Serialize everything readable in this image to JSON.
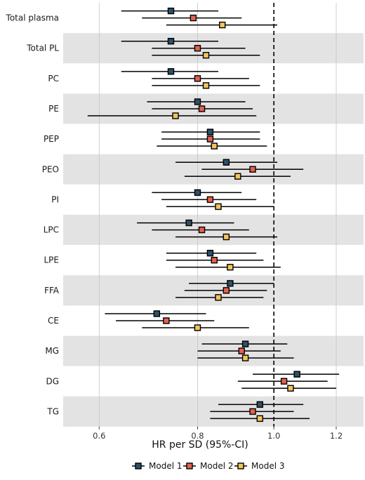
{
  "chart_data": {
    "type": "scatter",
    "subtype": "forest-plot",
    "title": "",
    "xlabel": "HR per SD (95%-CI)",
    "ylabel": "",
    "x_scale": "log",
    "xlim": [
      0.54,
      1.3
    ],
    "x_ticks": [
      0.6,
      0.8,
      1.0,
      1.2
    ],
    "x_tick_labels": [
      "0.6",
      "0.8",
      "1.0",
      "1.2"
    ],
    "reference_line": 1.0,
    "grid": true,
    "legend_position": "bottom",
    "categories": [
      "Total plasma",
      "Total PL",
      "PC",
      "PE",
      "PEP",
      "PEO",
      "PI",
      "LPC",
      "LPE",
      "FFA",
      "CE",
      "MG",
      "DG",
      "TG"
    ],
    "series": [
      {
        "name": "Model 1",
        "color": "#2E5069",
        "hr": [
          0.74,
          0.74,
          0.74,
          0.8,
          0.83,
          0.87,
          0.8,
          0.78,
          0.83,
          0.88,
          0.71,
          0.92,
          1.07,
          0.96
        ],
        "lower": [
          0.64,
          0.64,
          0.64,
          0.69,
          0.72,
          0.75,
          0.7,
          0.67,
          0.73,
          0.78,
          0.61,
          0.81,
          0.94,
          0.85
        ],
        "upper": [
          0.85,
          0.85,
          0.85,
          0.92,
          0.96,
          1.01,
          0.91,
          0.89,
          0.95,
          1.0,
          0.82,
          1.04,
          1.21,
          1.09
        ]
      },
      {
        "name": "Model 2",
        "color": "#E3614E",
        "hr": [
          0.79,
          0.8,
          0.8,
          0.81,
          0.83,
          0.94,
          0.83,
          0.81,
          0.84,
          0.87,
          0.73,
          0.91,
          1.03,
          0.94
        ],
        "lower": [
          0.68,
          0.7,
          0.7,
          0.7,
          0.72,
          0.81,
          0.72,
          0.7,
          0.73,
          0.77,
          0.63,
          0.8,
          0.9,
          0.83
        ],
        "upper": [
          0.91,
          0.92,
          0.93,
          0.94,
          0.96,
          1.09,
          0.95,
          0.93,
          0.97,
          0.98,
          0.84,
          1.02,
          1.17,
          1.06
        ]
      },
      {
        "name": "Model 3",
        "color": "#F2C55B",
        "hr": [
          0.86,
          0.82,
          0.82,
          0.75,
          0.84,
          0.9,
          0.85,
          0.87,
          0.88,
          0.85,
          0.8,
          0.92,
          1.05,
          0.96
        ],
        "lower": [
          0.73,
          0.7,
          0.7,
          0.58,
          0.71,
          0.77,
          0.73,
          0.75,
          0.75,
          0.75,
          0.68,
          0.8,
          0.91,
          0.83
        ],
        "upper": [
          1.01,
          0.96,
          0.96,
          0.95,
          0.98,
          1.05,
          1.0,
          1.01,
          1.02,
          0.97,
          0.93,
          1.06,
          1.2,
          1.11
        ]
      }
    ]
  }
}
